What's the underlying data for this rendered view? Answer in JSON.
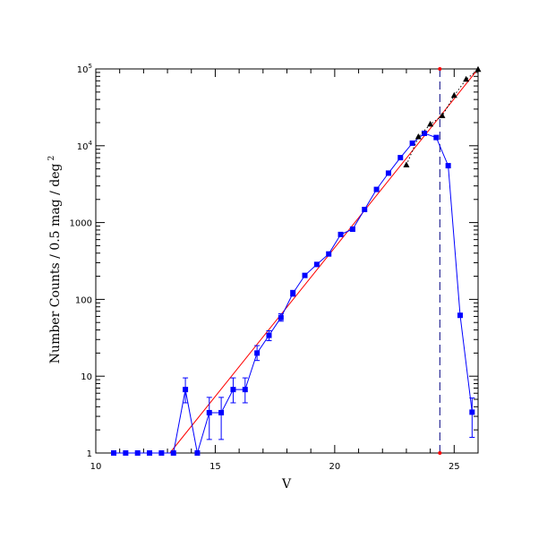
{
  "chart_data": {
    "type": "scatter",
    "xlabel": "V",
    "ylabel": "Number Counts / 0.5 mag / deg",
    "ylabel_superscript": "2",
    "xlim": [
      10,
      26
    ],
    "ylim": [
      1,
      100000
    ],
    "yscale": "log",
    "grid": false,
    "x_ticks": [
      {
        "value": 10,
        "label": "10"
      },
      {
        "value": 15,
        "label": "15"
      },
      {
        "value": 20,
        "label": "20"
      },
      {
        "value": 25,
        "label": "25"
      }
    ],
    "y_ticks": [
      {
        "value": 1,
        "label": "1"
      },
      {
        "value": 10,
        "label": "10"
      },
      {
        "value": 100,
        "label": "100"
      },
      {
        "value": 1000,
        "label": "1000"
      },
      {
        "value": 10000,
        "label": "10",
        "exp": "4"
      },
      {
        "value": 100000,
        "label": "10",
        "exp": "5"
      }
    ],
    "series": [
      {
        "style": "blue-squares-line-errorbars",
        "color": "#0000ff",
        "points": [
          {
            "x": 10.75,
            "y": 1
          },
          {
            "x": 11.25,
            "y": 1
          },
          {
            "x": 11.75,
            "y": 1
          },
          {
            "x": 12.25,
            "y": 1
          },
          {
            "x": 12.75,
            "y": 1
          },
          {
            "x": 13.25,
            "y": 1
          },
          {
            "x": 13.75,
            "y": 6.7,
            "ylo": 4.5,
            "yhi": 9.5
          },
          {
            "x": 14.25,
            "y": 1
          },
          {
            "x": 14.75,
            "y": 3.35,
            "ylo": 1.5,
            "yhi": 5.3
          },
          {
            "x": 15.25,
            "y": 3.35,
            "ylo": 1.5,
            "yhi": 5.3
          },
          {
            "x": 15.75,
            "y": 6.7,
            "ylo": 4.5,
            "yhi": 9.5
          },
          {
            "x": 16.25,
            "y": 6.7,
            "ylo": 4.5,
            "yhi": 9.5
          },
          {
            "x": 16.75,
            "y": 20,
            "ylo": 16,
            "yhi": 25
          },
          {
            "x": 17.25,
            "y": 34,
            "ylo": 29,
            "yhi": 39
          },
          {
            "x": 17.75,
            "y": 58,
            "ylo": 52,
            "yhi": 65
          },
          {
            "x": 18.25,
            "y": 120,
            "ylo": 110,
            "yhi": 131
          },
          {
            "x": 18.75,
            "y": 205
          },
          {
            "x": 19.25,
            "y": 285
          },
          {
            "x": 19.75,
            "y": 390
          },
          {
            "x": 20.25,
            "y": 700
          },
          {
            "x": 20.75,
            "y": 820
          },
          {
            "x": 21.25,
            "y": 1480
          },
          {
            "x": 21.75,
            "y": 2700
          },
          {
            "x": 22.25,
            "y": 4400
          },
          {
            "x": 22.75,
            "y": 7000
          },
          {
            "x": 23.25,
            "y": 10800
          },
          {
            "x": 23.75,
            "y": 14500
          },
          {
            "x": 24.25,
            "y": 12800
          },
          {
            "x": 24.75,
            "y": 5500
          },
          {
            "x": 25.25,
            "y": 62
          },
          {
            "x": 25.75,
            "y": 3.4,
            "ylo": 1.6,
            "yhi": 5.2
          }
        ]
      },
      {
        "style": "black-triangles-dotted",
        "color": "#000000",
        "points": [
          {
            "x": 23.0,
            "y": 5600
          },
          {
            "x": 23.5,
            "y": 13000
          },
          {
            "x": 24.0,
            "y": 19000
          },
          {
            "x": 24.5,
            "y": 24500
          },
          {
            "x": 25.0,
            "y": 45000
          },
          {
            "x": 25.5,
            "y": 73000
          },
          {
            "x": 26.0,
            "y": 98000
          }
        ]
      }
    ],
    "fit_line": {
      "color": "#ff0000",
      "x": [
        13.1,
        26.0
      ],
      "y": [
        1,
        100000
      ]
    },
    "completeness_limit": {
      "x": 24.4,
      "color": "#000080"
    }
  }
}
